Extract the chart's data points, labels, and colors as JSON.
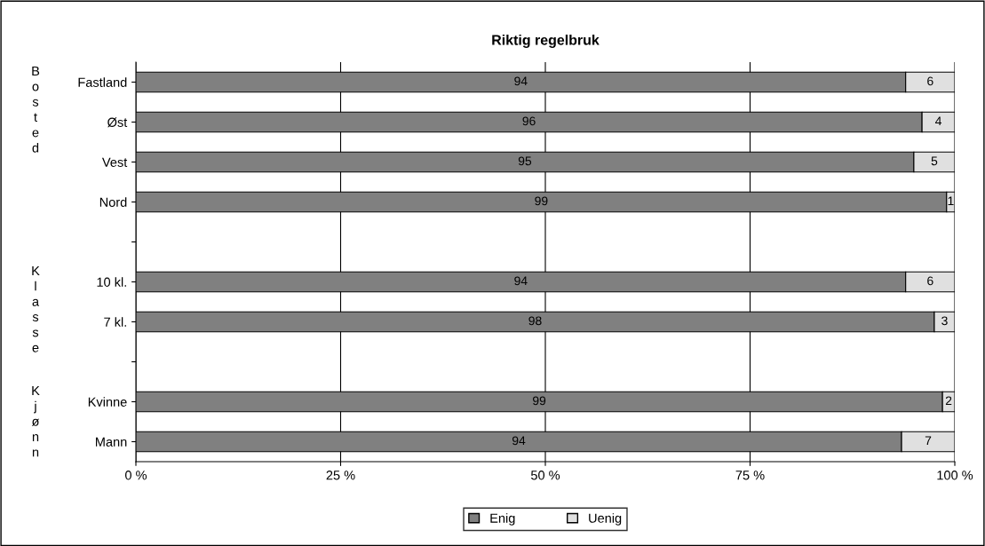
{
  "chart_data": {
    "type": "bar",
    "orientation": "horizontal",
    "stacked": true,
    "title": "Riktig regelbruk",
    "categories": [
      "Fastland",
      "Øst",
      "Vest",
      "Nord",
      null,
      "10 kl.",
      "7 kl.",
      null,
      "Kvinne",
      "Mann"
    ],
    "series": [
      {
        "name": "Enig",
        "color": "#808080",
        "values": [
          94,
          96,
          95,
          99,
          null,
          94,
          97.5,
          null,
          98.5,
          93.5
        ],
        "value_labels": [
          "94",
          "96",
          "95",
          "99",
          null,
          "94",
          "98",
          null,
          "99",
          "94"
        ]
      },
      {
        "name": "Uenig",
        "color": "#e0e0e0",
        "values": [
          6,
          4,
          5,
          1,
          null,
          6,
          2.5,
          null,
          1.5,
          6.5
        ],
        "value_labels": [
          "6",
          "4",
          "5",
          "1",
          null,
          "6",
          "3",
          null,
          "2",
          "7"
        ]
      }
    ],
    "xlim": [
      0,
      100
    ],
    "xticks": [
      {
        "value": 0,
        "label": "0 %"
      },
      {
        "value": 25,
        "label": "25 %"
      },
      {
        "value": 50,
        "label": "50 %"
      },
      {
        "value": 75,
        "label": "75 %"
      },
      {
        "value": 100,
        "label": "100 %"
      }
    ],
    "grid": "x",
    "legend": "bottom",
    "annotations": [
      "Bosted",
      "Klasse",
      "Kjønn"
    ]
  }
}
